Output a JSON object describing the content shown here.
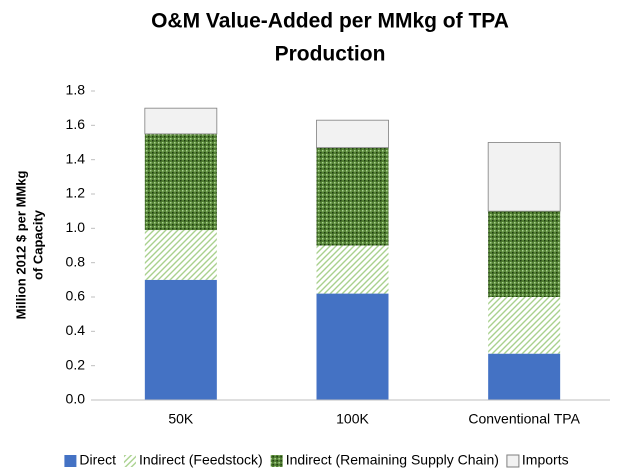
{
  "chart_data": {
    "type": "stacked_bar",
    "title": [
      "O&M Value-Added per MMkg of TPA",
      "Production"
    ],
    "ylabel": [
      "Million 2012 $ per MMkg",
      "of Capacity"
    ],
    "categories": [
      "50K",
      "100K",
      "Conventional TPA"
    ],
    "series": [
      {
        "name": "Direct",
        "color": "#4472c4",
        "pattern": "solid",
        "values": [
          0.7,
          0.62,
          0.27
        ]
      },
      {
        "name": "Indirect (Feedstock)",
        "color": "#a9d18e",
        "pattern": "diagonal",
        "values": [
          0.29,
          0.28,
          0.33
        ]
      },
      {
        "name": "Indirect (Remaining Supply Chain)",
        "color": "#548235",
        "pattern": "dots",
        "values": [
          0.56,
          0.57,
          0.5
        ]
      },
      {
        "name": "Imports",
        "color": "#f2f2f2",
        "pattern": "solid",
        "values": [
          0.15,
          0.16,
          0.4
        ]
      }
    ],
    "ylim": [
      0,
      1.8
    ],
    "yticks": [
      {
        "value": 0,
        "label": "0.0"
      },
      0.2,
      0.4,
      0.6,
      0.8,
      {
        "value": 1,
        "label": "1.0"
      },
      1.2,
      1.4,
      1.6,
      1.8
    ],
    "grid": false,
    "legend": "bottom"
  }
}
